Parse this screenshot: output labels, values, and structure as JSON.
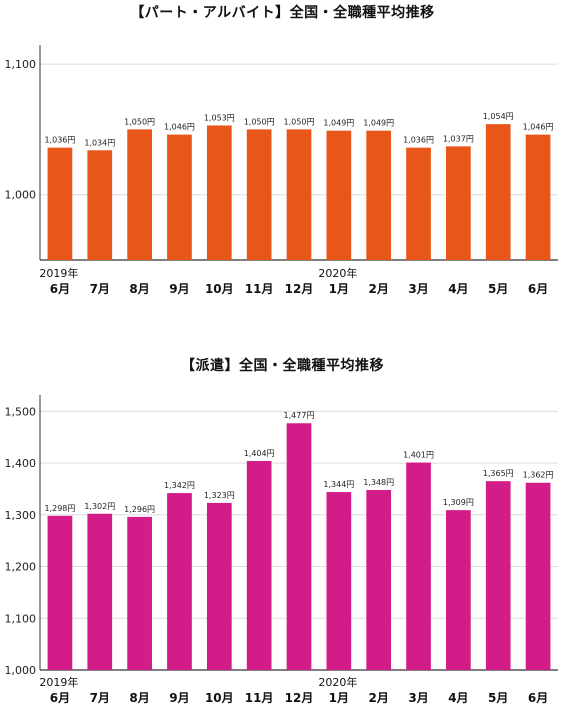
{
  "chart_data": [
    {
      "type": "bar",
      "title": "【パート・アルバイト】全国・全職種平均推移",
      "color": "#E8561A",
      "categories": [
        "6月",
        "7月",
        "8月",
        "9月",
        "10月",
        "11月",
        "12月",
        "1月",
        "2月",
        "3月",
        "4月",
        "5月",
        "6月"
      ],
      "year_labels": [
        {
          "index": 0,
          "label": "2019年"
        },
        {
          "index": 7,
          "label": "2020年"
        }
      ],
      "values": [
        1036,
        1034,
        1050,
        1046,
        1053,
        1050,
        1050,
        1049,
        1049,
        1036,
        1037,
        1054,
        1046
      ],
      "value_labels": [
        "1,036円",
        "1,034円",
        "1,050円",
        "1,046円",
        "1,053円",
        "1,050円",
        "1,050円",
        "1,049円",
        "1,049円",
        "1,036円",
        "1,037円",
        "1,054円",
        "1,046円"
      ],
      "yticks": [
        1000,
        1100
      ],
      "ytick_labels": [
        "1,000",
        "1,100"
      ],
      "ylim": [
        950,
        1110
      ],
      "grid": true
    },
    {
      "type": "bar",
      "title": "【派遣】全国・全職種平均推移",
      "color": "#D21C87",
      "categories": [
        "6月",
        "7月",
        "8月",
        "9月",
        "10月",
        "11月",
        "12月",
        "1月",
        "2月",
        "3月",
        "4月",
        "5月",
        "6月"
      ],
      "year_labels": [
        {
          "index": 0,
          "label": "2019年"
        },
        {
          "index": 7,
          "label": "2020年"
        }
      ],
      "values": [
        1298,
        1302,
        1296,
        1342,
        1323,
        1404,
        1477,
        1344,
        1348,
        1401,
        1309,
        1365,
        1362
      ],
      "value_labels": [
        "1,298円",
        "1,302円",
        "1,296円",
        "1,342円",
        "1,323円",
        "1,404円",
        "1,477円",
        "1,344円",
        "1,348円",
        "1,401円",
        "1,309円",
        "1,365円",
        "1,362円"
      ],
      "yticks": [
        1000,
        1100,
        1200,
        1300,
        1400,
        1500
      ],
      "ytick_labels": [
        "1,000",
        "1,100",
        "1,200",
        "1,300",
        "1,400",
        "1,500"
      ],
      "ylim": [
        1000,
        1520
      ],
      "grid": true
    }
  ]
}
